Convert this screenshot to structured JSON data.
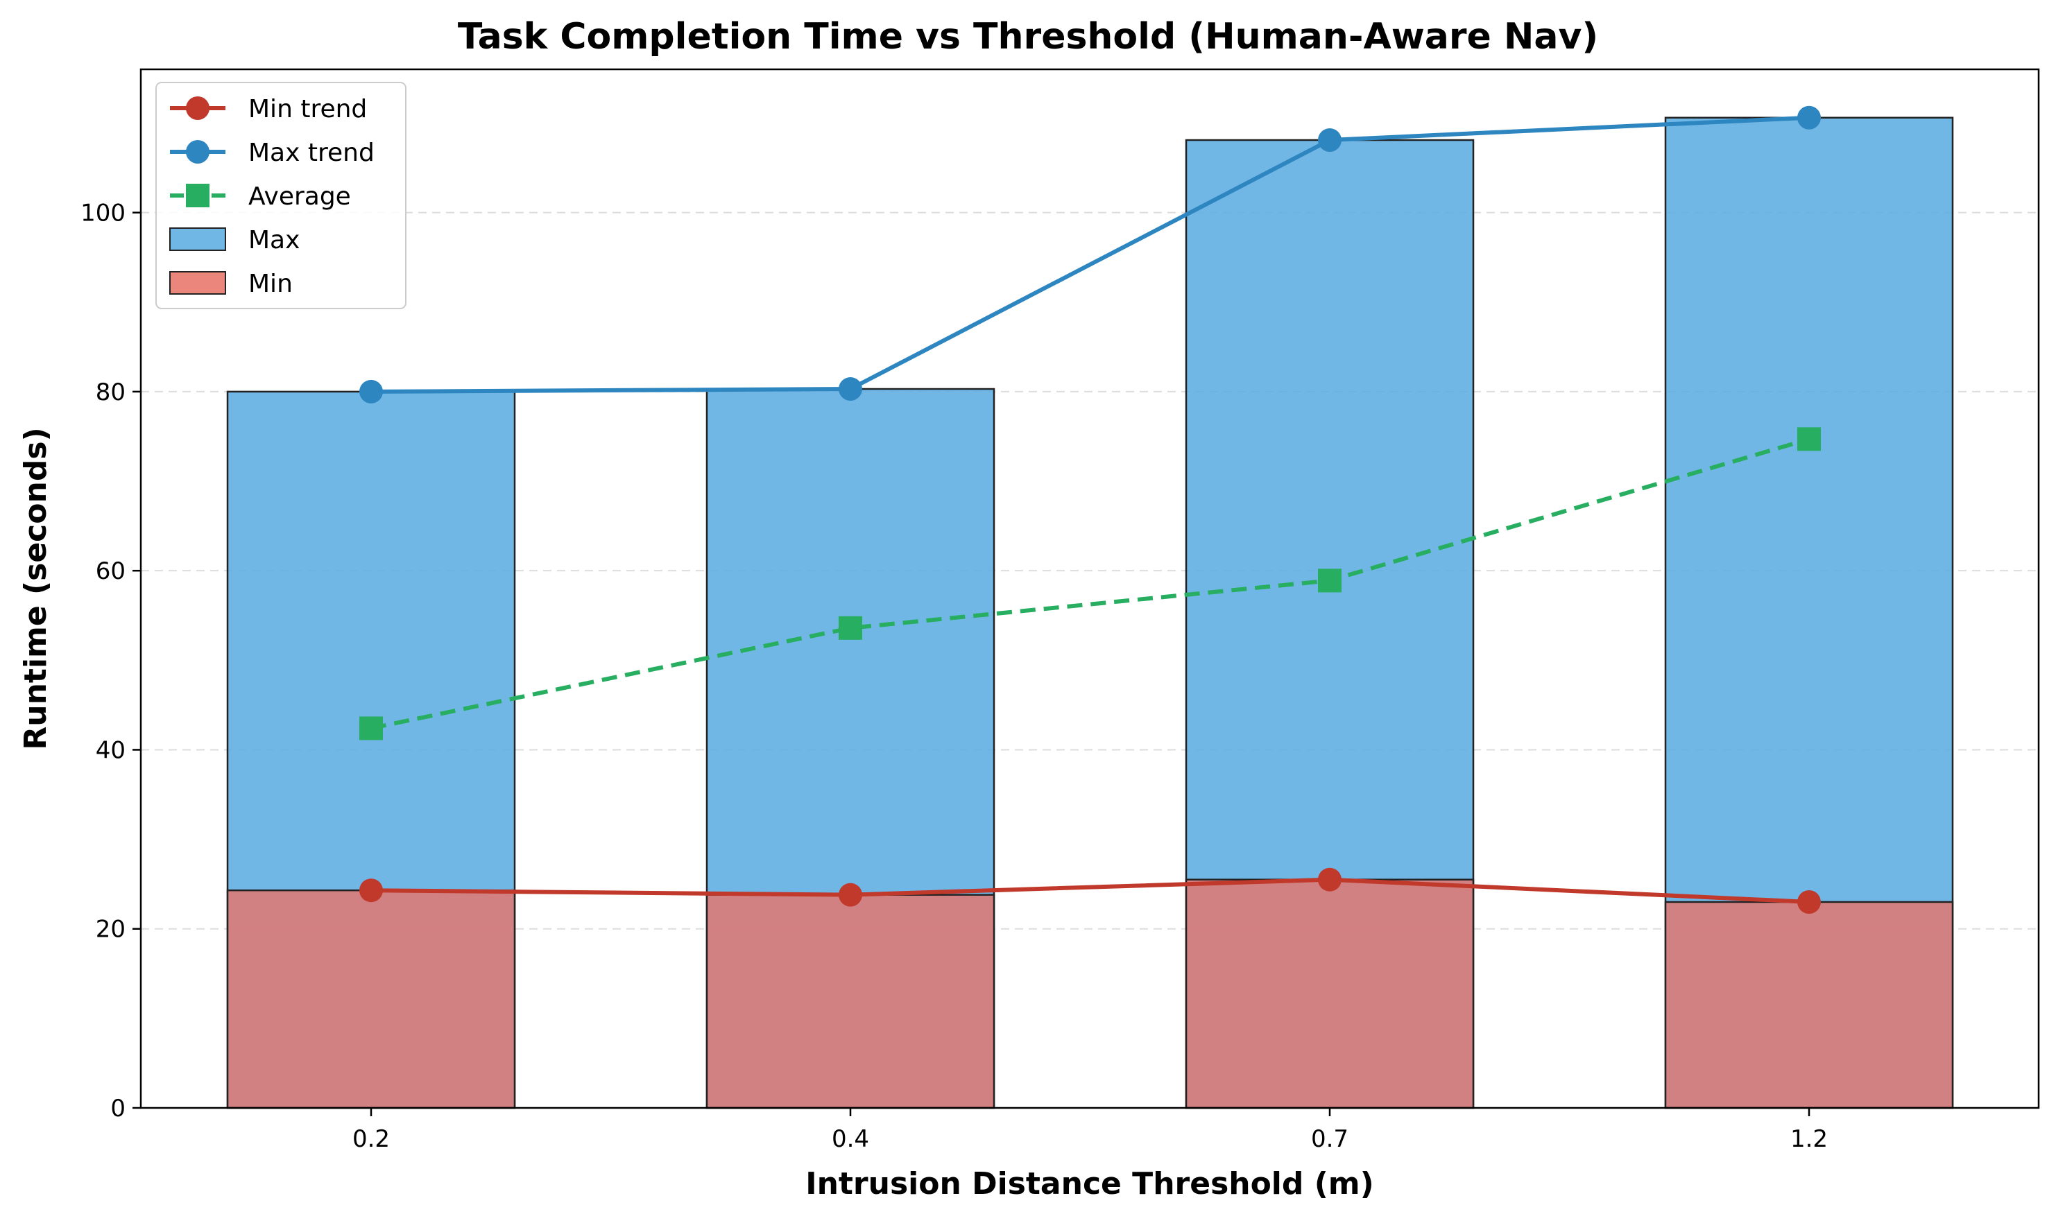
{
  "chart_data": {
    "type": "bar",
    "title": "Task Completion Time vs Threshold (Human-Aware Nav)",
    "xlabel": "Intrusion Distance Threshold (m)",
    "ylabel": "Runtime (seconds)",
    "categories": [
      "0.2",
      "0.4",
      "0.7",
      "1.2"
    ],
    "ylim": [
      0,
      116
    ],
    "yticks": [
      0,
      20,
      40,
      60,
      80,
      100
    ],
    "grid": "y-dashed",
    "legend_position": "top-left",
    "bars": [
      {
        "name": "Max",
        "values": [
          80.0,
          80.3,
          108.1,
          110.6
        ],
        "color": "#5DADE2"
      },
      {
        "name": "Min",
        "values": [
          24.3,
          23.8,
          25.5,
          23.0
        ],
        "color": "#E8756B"
      }
    ],
    "lines": [
      {
        "name": "Min trend",
        "values": [
          24.3,
          23.8,
          25.5,
          23.0
        ],
        "color": "#C0392B",
        "style": "solid",
        "marker": "circle"
      },
      {
        "name": "Max trend",
        "values": [
          80.0,
          80.3,
          108.1,
          110.6
        ],
        "color": "#2E86C1",
        "style": "solid",
        "marker": "circle"
      },
      {
        "name": "Average",
        "values": [
          42.4,
          53.6,
          58.9,
          74.7
        ],
        "color": "#27AE60",
        "style": "dashed",
        "marker": "square"
      }
    ]
  }
}
